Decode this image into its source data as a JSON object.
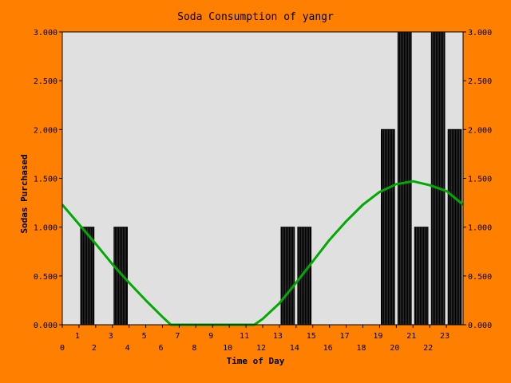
{
  "chart_data": {
    "type": "bar",
    "title": "Soda Consumption of yangr",
    "xlabel": "Time of Day",
    "ylabel": "Sodas Purchased",
    "x_range": [
      0,
      24
    ],
    "ylim": [
      0,
      3
    ],
    "y_ticks": [
      "0.000",
      "0.500",
      "1.000",
      "1.500",
      "2.000",
      "2.500",
      "3.000"
    ],
    "x_ticks": [
      0,
      1,
      2,
      3,
      4,
      5,
      6,
      7,
      8,
      9,
      10,
      11,
      12,
      13,
      14,
      15,
      16,
      17,
      18,
      19,
      20,
      21,
      22,
      23
    ],
    "hours": [
      0,
      1,
      2,
      3,
      4,
      5,
      6,
      7,
      8,
      9,
      10,
      11,
      12,
      13,
      14,
      15,
      16,
      17,
      18,
      19,
      20,
      21,
      22,
      23
    ],
    "values": [
      0,
      1,
      0,
      1,
      0,
      0,
      0,
      0,
      0,
      0,
      0,
      0,
      0,
      1,
      1,
      0,
      0,
      0,
      0,
      2,
      3,
      1,
      3,
      2
    ],
    "trend": {
      "x": [
        0,
        1,
        2,
        3,
        4,
        5,
        6,
        6.5,
        11.5,
        12,
        13,
        14,
        15,
        16,
        17,
        18,
        19,
        20,
        21,
        22,
        23,
        24
      ],
      "y": [
        1.23,
        1.03,
        0.83,
        0.62,
        0.43,
        0.25,
        0.08,
        0.0,
        0.0,
        0.06,
        0.22,
        0.43,
        0.65,
        0.87,
        1.06,
        1.23,
        1.36,
        1.44,
        1.47,
        1.43,
        1.37,
        1.23
      ]
    },
    "grid": false,
    "legend": "none",
    "colors": {
      "background": "#ff8000",
      "plot_area": "#e0e0e0",
      "bar": "#8b0000",
      "bar_hatch": "#000000",
      "trend": "#00aa00"
    }
  }
}
